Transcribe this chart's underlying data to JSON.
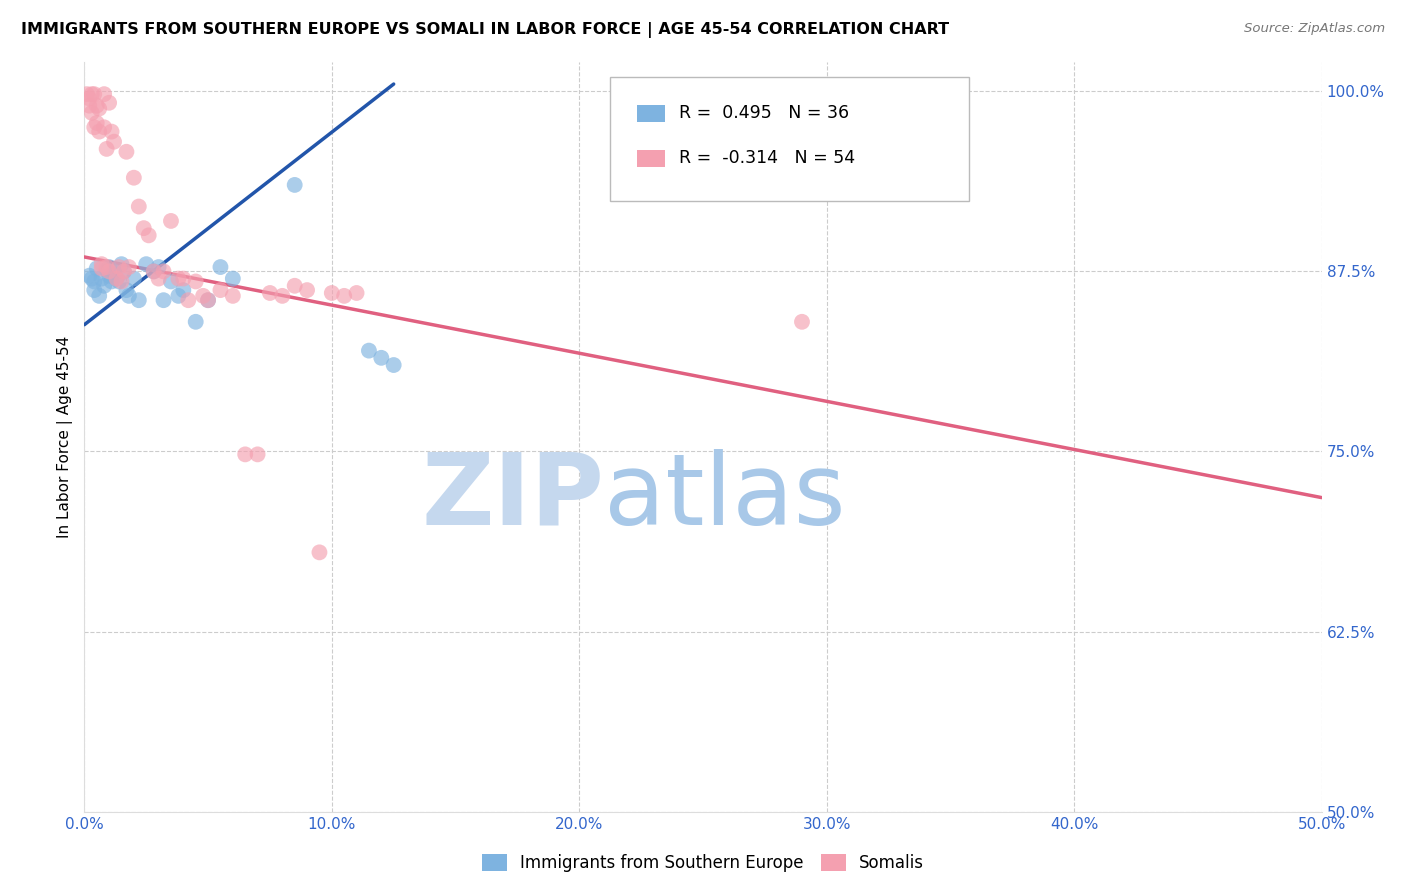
{
  "title": "IMMIGRANTS FROM SOUTHERN EUROPE VS SOMALI IN LABOR FORCE | AGE 45-54 CORRELATION CHART",
  "source": "Source: ZipAtlas.com",
  "ylabel": "In Labor Force | Age 45-54",
  "xlim": [
    0.0,
    0.5
  ],
  "ylim": [
    0.5,
    1.02
  ],
  "xticks": [
    0.0,
    0.1,
    0.2,
    0.3,
    0.4,
    0.5
  ],
  "xticklabels": [
    "0.0%",
    "10.0%",
    "20.0%",
    "30.0%",
    "40.0%",
    "50.0%"
  ],
  "yticks": [
    0.5,
    0.625,
    0.75,
    0.875,
    1.0
  ],
  "yticklabels": [
    "50.0%",
    "62.5%",
    "75.0%",
    "87.5%",
    "100.0%"
  ],
  "legend_blue_r_val": "0.495",
  "legend_blue_n_val": "36",
  "legend_pink_r_val": "-0.314",
  "legend_pink_n_val": "54",
  "blue_color": "#7EB3E0",
  "pink_color": "#F4A0B0",
  "blue_line_color": "#2255AA",
  "pink_line_color": "#E06080",
  "blue_label": "Immigrants from Southern Europe",
  "pink_label": "Somalis",
  "blue_x": [
    0.002,
    0.003,
    0.004,
    0.004,
    0.005,
    0.006,
    0.007,
    0.008,
    0.009,
    0.01,
    0.01,
    0.011,
    0.012,
    0.013,
    0.014,
    0.015,
    0.016,
    0.017,
    0.018,
    0.02,
    0.022,
    0.025,
    0.028,
    0.03,
    0.032,
    0.035,
    0.038,
    0.04,
    0.045,
    0.05,
    0.055,
    0.06,
    0.085,
    0.115,
    0.12,
    0.125
  ],
  "blue_y": [
    0.872,
    0.87,
    0.868,
    0.862,
    0.877,
    0.858,
    0.87,
    0.865,
    0.876,
    0.878,
    0.872,
    0.868,
    0.875,
    0.87,
    0.868,
    0.88,
    0.875,
    0.862,
    0.858,
    0.87,
    0.855,
    0.88,
    0.875,
    0.878,
    0.855,
    0.868,
    0.858,
    0.862,
    0.84,
    0.855,
    0.878,
    0.87,
    0.935,
    0.82,
    0.815,
    0.81
  ],
  "pink_x": [
    0.001,
    0.002,
    0.002,
    0.003,
    0.003,
    0.004,
    0.004,
    0.005,
    0.005,
    0.006,
    0.006,
    0.007,
    0.007,
    0.008,
    0.008,
    0.009,
    0.009,
    0.01,
    0.01,
    0.011,
    0.012,
    0.013,
    0.014,
    0.015,
    0.016,
    0.017,
    0.018,
    0.02,
    0.022,
    0.024,
    0.026,
    0.028,
    0.03,
    0.032,
    0.035,
    0.038,
    0.04,
    0.042,
    0.045,
    0.048,
    0.05,
    0.055,
    0.06,
    0.065,
    0.07,
    0.075,
    0.08,
    0.085,
    0.09,
    0.095,
    0.1,
    0.105,
    0.11,
    0.29
  ],
  "pink_y": [
    0.998,
    0.995,
    0.99,
    0.998,
    0.985,
    0.998,
    0.975,
    0.99,
    0.978,
    0.988,
    0.972,
    0.88,
    0.877,
    0.998,
    0.975,
    0.96,
    0.878,
    0.992,
    0.875,
    0.972,
    0.965,
    0.87,
    0.878,
    0.868,
    0.875,
    0.958,
    0.878,
    0.94,
    0.92,
    0.905,
    0.9,
    0.875,
    0.87,
    0.875,
    0.91,
    0.87,
    0.87,
    0.855,
    0.868,
    0.858,
    0.855,
    0.862,
    0.858,
    0.748,
    0.748,
    0.86,
    0.858,
    0.865,
    0.862,
    0.68,
    0.86,
    0.858,
    0.86,
    0.84
  ],
  "blue_line_x0": 0.0,
  "blue_line_y0": 0.838,
  "blue_line_x1": 0.125,
  "blue_line_y1": 1.005,
  "pink_line_x0": 0.0,
  "pink_line_y0": 0.885,
  "pink_line_x1": 0.5,
  "pink_line_y1": 0.718
}
